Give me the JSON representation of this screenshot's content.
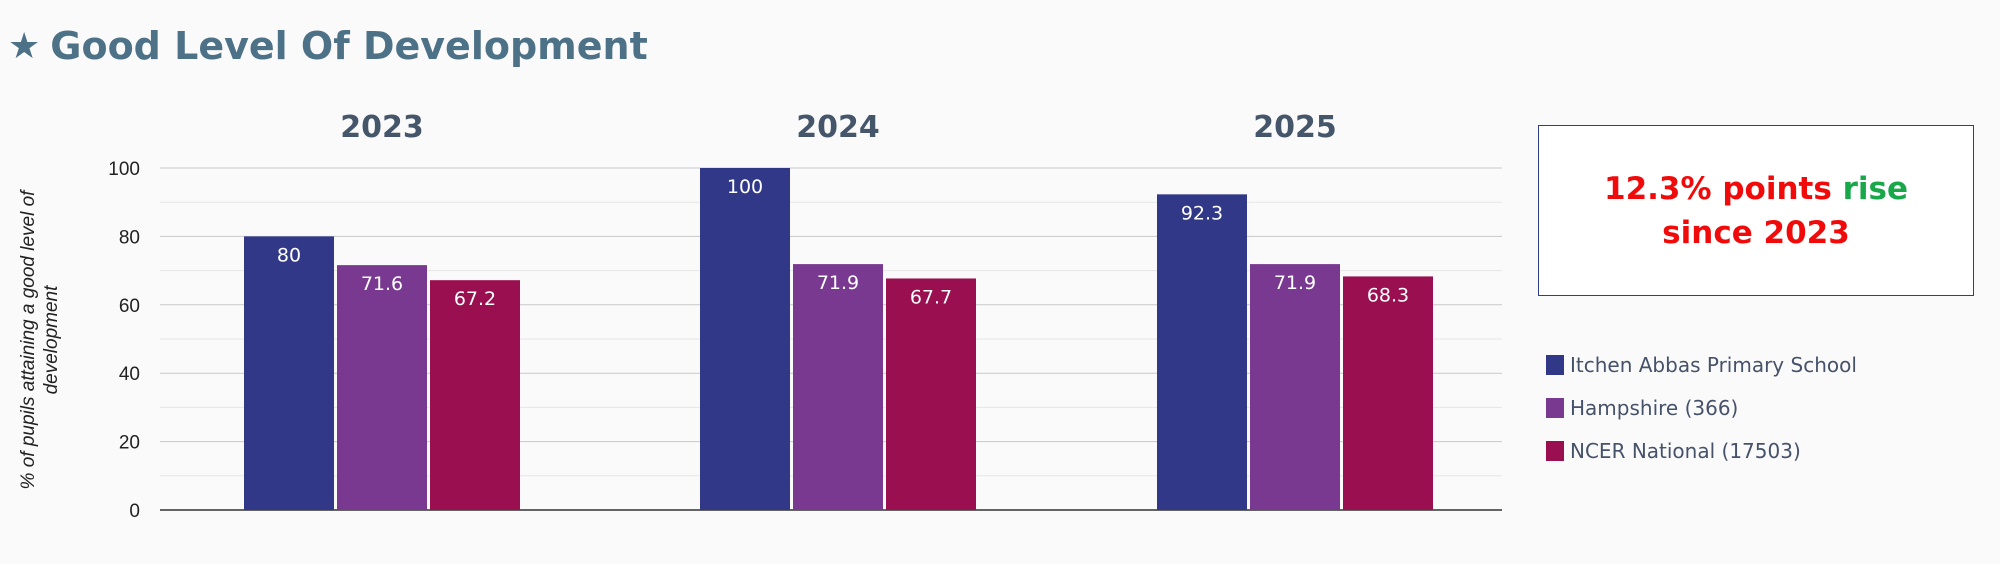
{
  "page": {
    "title": "Good Level Of Development",
    "title_icon": "star-icon"
  },
  "callout": {
    "line1_red": "12.3% points",
    "line1_green": "rise",
    "line2": "since 2023",
    "red_color": "#f00a0a",
    "green_color": "#18a84a"
  },
  "chart_data": {
    "type": "bar",
    "categories": [
      "2023",
      "2024",
      "2025"
    ],
    "series": [
      {
        "name": "Itchen Abbas Primary School",
        "color": "#313887",
        "values": [
          80,
          100,
          92.3
        ]
      },
      {
        "name": "Hampshire (366)",
        "color": "#7a3990",
        "values": [
          71.6,
          71.9,
          71.9
        ]
      },
      {
        "name": "NCER National (17503)",
        "color": "#990f4f",
        "values": [
          67.2,
          67.7,
          68.3
        ]
      }
    ],
    "ylabel": "% of pupils attaining a good level of development",
    "ylim": [
      0,
      100
    ],
    "yticks": [
      "0",
      "20",
      "40",
      "60",
      "80",
      "100"
    ],
    "grid": true,
    "legend_position": "right",
    "data_labels": true
  }
}
